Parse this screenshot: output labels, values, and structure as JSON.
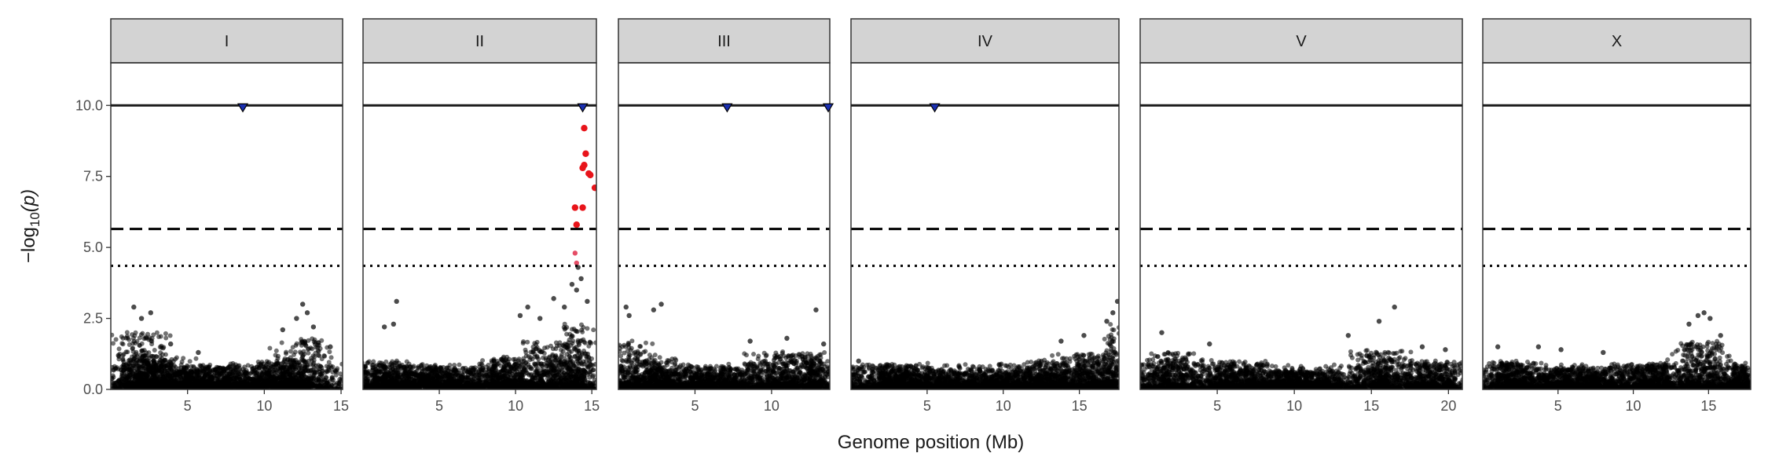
{
  "chart_data": {
    "type": "scatter",
    "subtype": "manhattan",
    "xlabel": "Genome position (Mb)",
    "ylabel": "−log10(p)",
    "ylabel_parts": {
      "prefix": "−log",
      "subscript": "10",
      "suffix": "(p)"
    },
    "ylim": [
      0,
      11.5
    ],
    "yticks": [
      0.0,
      2.5,
      5.0,
      7.5,
      10.0
    ],
    "ytick_labels": [
      "0.0",
      "2.5",
      "5.0",
      "7.5",
      "10.0"
    ],
    "grid": false,
    "legend": "none",
    "thresholds": [
      {
        "style": "dashed",
        "value": 5.65
      },
      {
        "style": "dotted",
        "value": 4.35
      }
    ],
    "capped_marker": {
      "shape": "triangle-down",
      "y": 10.0,
      "color": "#1a2fb0"
    },
    "colors": {
      "points": "#000000",
      "significant": "#e8141a",
      "near_significant": "#e23a55",
      "strip": "#d3d3d3",
      "frame": "#333333"
    },
    "panels": [
      {
        "label": "I",
        "xlim": [
          0,
          15.1
        ],
        "xticks": [
          5,
          10,
          15
        ],
        "xtick_labels": [
          "5",
          "10",
          "15"
        ],
        "capped": [
          8.6
        ],
        "significant": [],
        "near_significant": [],
        "peaks": [
          [
            0.5,
            1.2
          ],
          [
            1.5,
            2.9
          ],
          [
            2.0,
            2.5
          ],
          [
            2.6,
            2.7
          ],
          [
            3.9,
            1.6
          ],
          [
            5.7,
            1.3
          ],
          [
            11.2,
            2.1
          ],
          [
            12.1,
            2.5
          ],
          [
            12.5,
            3.0
          ],
          [
            12.8,
            2.7
          ],
          [
            13.2,
            2.2
          ],
          [
            14.3,
            1.5
          ]
        ],
        "density": [
          [
            1.8,
            1.4,
            1.9
          ],
          [
            3.2,
            1.6,
            1.1
          ],
          [
            6.5,
            3.0,
            0.7
          ],
          [
            10.5,
            1.5,
            0.9
          ],
          [
            12.6,
            1.4,
            1.7
          ]
        ]
      },
      {
        "label": "II",
        "xlim": [
          0,
          15.3
        ],
        "xticks": [
          5,
          10,
          15
        ],
        "xtick_labels": [
          "5",
          "10",
          "15"
        ],
        "capped": [
          14.4
        ],
        "significant": [
          [
            14.5,
            9.2
          ],
          [
            14.6,
            8.3
          ],
          [
            14.5,
            7.9
          ],
          [
            14.4,
            7.8
          ],
          [
            14.8,
            7.6
          ],
          [
            14.9,
            7.55
          ],
          [
            15.2,
            7.1
          ],
          [
            13.9,
            6.4
          ],
          [
            14.4,
            6.4
          ],
          [
            14.0,
            5.8
          ]
        ],
        "near_significant": [
          [
            13.9,
            4.8
          ],
          [
            14.0,
            4.45
          ]
        ],
        "peaks": [
          [
            1.4,
            2.2
          ],
          [
            2.0,
            2.3
          ],
          [
            2.2,
            3.1
          ],
          [
            10.3,
            2.6
          ],
          [
            10.8,
            2.9
          ],
          [
            11.6,
            2.5
          ],
          [
            12.5,
            3.2
          ],
          [
            13.2,
            2.9
          ],
          [
            13.7,
            3.7
          ],
          [
            14.1,
            4.3
          ],
          [
            14.3,
            3.9
          ],
          [
            14.0,
            3.5
          ],
          [
            14.7,
            3.1
          ]
        ],
        "density": [
          [
            1.6,
            1.4,
            0.9
          ],
          [
            5.0,
            3.0,
            0.7
          ],
          [
            9.5,
            1.5,
            1.0
          ],
          [
            12.5,
            1.5,
            1.6
          ],
          [
            14.2,
            0.8,
            2.2
          ]
        ]
      },
      {
        "label": "III",
        "xlim": [
          0,
          13.8
        ],
        "xticks": [
          5,
          10
        ],
        "xtick_labels": [
          "5",
          "10"
        ],
        "capped": [
          7.1,
          13.7
        ],
        "significant": [],
        "near_significant": [],
        "peaks": [
          [
            0.5,
            2.9
          ],
          [
            0.7,
            2.6
          ],
          [
            2.3,
            2.8
          ],
          [
            2.8,
            3.0
          ],
          [
            8.6,
            1.7
          ],
          [
            11.0,
            1.8
          ],
          [
            12.9,
            2.8
          ],
          [
            13.4,
            1.6
          ]
        ],
        "density": [
          [
            0.8,
            1.0,
            1.6
          ],
          [
            2.6,
            1.0,
            1.0
          ],
          [
            6.0,
            2.5,
            0.7
          ],
          [
            10.8,
            1.8,
            1.2
          ],
          [
            13.0,
            0.7,
            1.0
          ]
        ]
      },
      {
        "label": "IV",
        "xlim": [
          0,
          17.6
        ],
        "xticks": [
          5,
          10,
          15
        ],
        "xtick_labels": [
          "5",
          "10",
          "15"
        ],
        "capped": [
          5.5
        ],
        "significant": [],
        "near_significant": [],
        "peaks": [
          [
            0.5,
            1.0
          ],
          [
            13.8,
            1.7
          ],
          [
            15.3,
            1.9
          ],
          [
            16.8,
            2.4
          ],
          [
            17.2,
            2.7
          ],
          [
            17.5,
            3.1
          ]
        ],
        "density": [
          [
            2.5,
            2.0,
            0.8
          ],
          [
            8.0,
            4.0,
            0.6
          ],
          [
            13.0,
            1.5,
            0.9
          ],
          [
            15.8,
            1.5,
            1.2
          ],
          [
            17.2,
            0.4,
            2.2
          ]
        ]
      },
      {
        "label": "V",
        "xlim": [
          0,
          20.9
        ],
        "xticks": [
          5,
          10,
          15,
          20
        ],
        "xtick_labels": [
          "5",
          "10",
          "15",
          "20"
        ],
        "capped": [],
        "significant": [],
        "near_significant": [],
        "peaks": [
          [
            1.4,
            2.0
          ],
          [
            4.5,
            1.6
          ],
          [
            13.5,
            1.9
          ],
          [
            15.5,
            2.4
          ],
          [
            16.5,
            2.9
          ],
          [
            18.3,
            1.5
          ],
          [
            19.8,
            1.4
          ]
        ],
        "density": [
          [
            2.0,
            1.5,
            1.2
          ],
          [
            6.0,
            2.0,
            0.9
          ],
          [
            10.5,
            2.5,
            0.6
          ],
          [
            15.6,
            1.5,
            1.3
          ],
          [
            19.0,
            1.5,
            0.9
          ]
        ]
      },
      {
        "label": "X",
        "xlim": [
          0,
          17.8
        ],
        "xticks": [
          5,
          10,
          15
        ],
        "xtick_labels": [
          "5",
          "10",
          "15"
        ],
        "capped": [],
        "significant": [],
        "near_significant": [],
        "peaks": [
          [
            1.0,
            1.5
          ],
          [
            3.7,
            1.5
          ],
          [
            5.2,
            1.4
          ],
          [
            8.0,
            1.3
          ],
          [
            13.7,
            2.3
          ],
          [
            14.3,
            2.6
          ],
          [
            14.7,
            2.7
          ],
          [
            15.1,
            2.5
          ],
          [
            15.8,
            1.9
          ]
        ],
        "density": [
          [
            2.0,
            1.5,
            0.9
          ],
          [
            6.5,
            3.0,
            0.7
          ],
          [
            11.0,
            1.5,
            0.8
          ],
          [
            14.5,
            1.5,
            1.6
          ],
          [
            17.0,
            0.8,
            0.8
          ]
        ]
      }
    ]
  }
}
